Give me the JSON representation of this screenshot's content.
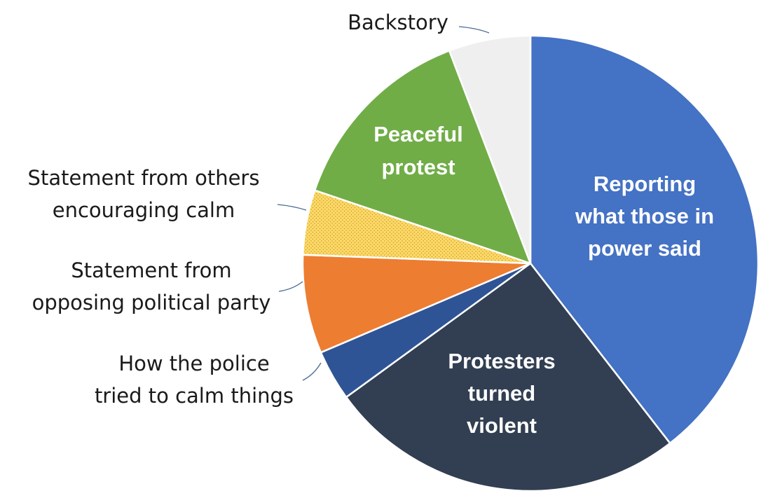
{
  "chart_data": {
    "type": "pie",
    "title": "",
    "start_angle_deg": 0,
    "direction": "clockwise",
    "slices": [
      {
        "label": "Reporting what those in power said",
        "lines": [
          "Reporting",
          "what those in",
          "power said"
        ],
        "value": 39.5,
        "color": "#4472c4",
        "label_position": "inside"
      },
      {
        "label": "Protesters turned violent",
        "lines": [
          "Protesters",
          "turned",
          "violent"
        ],
        "value": 25.5,
        "color": "#323f52",
        "label_position": "inside"
      },
      {
        "label": "How the police tried to calm things",
        "lines": [
          "How the police",
          "tried to calm things"
        ],
        "value": 3.6,
        "color": "#2f5496",
        "label_position": "outside"
      },
      {
        "label": "Statement from opposing political party",
        "lines": [
          "Statement from",
          "opposing political party"
        ],
        "value": 7.0,
        "color": "#ed7d31",
        "label_position": "outside"
      },
      {
        "label": "Statement from others encouraging calm",
        "lines": [
          "Statement from others",
          "encouraging calm"
        ],
        "value": 4.6,
        "color": "#ffd966",
        "pattern": "dots",
        "label_position": "outside"
      },
      {
        "label": "Peaceful protest",
        "lines": [
          "Peaceful",
          "protest"
        ],
        "value": 14.0,
        "color": "#70ad47",
        "label_position": "inside"
      },
      {
        "label": "Backstory",
        "lines": [
          "Backstory"
        ],
        "value": 5.8,
        "color": "#efefef",
        "label_position": "outside"
      }
    ]
  }
}
